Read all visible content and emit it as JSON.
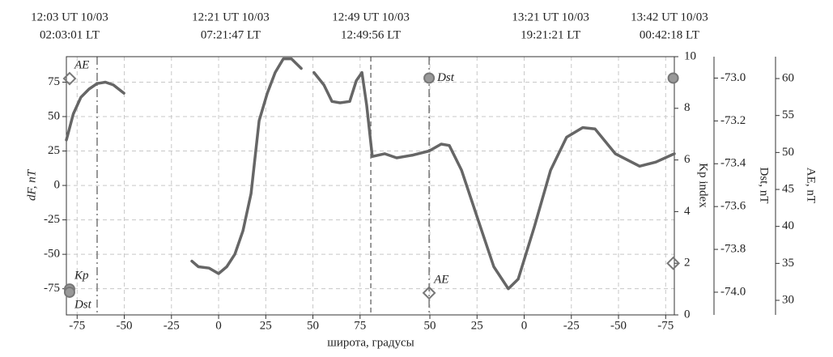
{
  "chart_data": {
    "type": "line",
    "xlabel": "широта, градусы",
    "ylabel": "dF, nT",
    "y2label": "Kp index",
    "y3label": "Dst, nT",
    "y4label": "AE, nT",
    "top_labels": [
      {
        "x": -79,
        "ut": "12:03 UT 10/03",
        "lt": "02:03:01 LT"
      },
      {
        "x": 6.4,
        "ut": "12:21 UT 10/03",
        "lt": "07:21:47 LT"
      },
      {
        "x": 80.7,
        "ut": "12:49 UT 10/03",
        "lt": "12:49:56 LT"
      },
      {
        "x": 176,
        "ut": "13:21 UT 10/03",
        "lt": "19:21:21 LT"
      },
      {
        "x": 239,
        "ut": "13:42 UT 10/03",
        "lt": "00:42:18 LT"
      }
    ],
    "xlim": [
      -80.7,
      241.6
    ],
    "xticks": [
      -75,
      -50,
      -25,
      0,
      25,
      50,
      75,
      {
        "value": 112,
        "label": "50"
      },
      {
        "value": 137,
        "label": "25"
      },
      {
        "value": 162,
        "label": "0"
      },
      {
        "value": 187,
        "label": "-25"
      },
      {
        "value": 212,
        "label": "-50"
      },
      {
        "value": 237,
        "label": "-75"
      }
    ],
    "ylim": [
      -94,
      93.5
    ],
    "yticks": [
      -75,
      -50,
      -25,
      0,
      25,
      50,
      75
    ],
    "y2lim": [
      0,
      10
    ],
    "y2ticks": [
      0,
      2,
      4,
      6,
      8,
      10
    ],
    "y3lim": [
      -74.106,
      -72.9
    ],
    "y3ticks": [
      {
        "value": -74.0,
        "label": "-74.0"
      },
      {
        "value": -73.8,
        "label": "-73.8"
      },
      {
        "value": -73.6,
        "label": "-73.6"
      },
      {
        "value": -73.4,
        "label": "-73.4"
      },
      {
        "value": -73.2,
        "label": "-73.2"
      },
      {
        "value": -73.0,
        "label": "-73.0"
      }
    ],
    "y4lim": [
      28.03,
      62.96
    ],
    "y4ticks": [
      30,
      35,
      40,
      45,
      50,
      55,
      60
    ],
    "grid": true,
    "vlines": [
      {
        "x": -64.4,
        "style": "dashdot"
      },
      {
        "x": 80.7,
        "style": "dashed"
      },
      {
        "x": 111.6,
        "style": "dashdot"
      }
    ],
    "series": [
      {
        "name": "dF",
        "color": "#666666",
        "x": [
          -80.7,
          -77,
          -73,
          -68.7,
          -64.4,
          -60,
          -55.8,
          -50.2,
          null,
          -14.2,
          -10.7,
          -5,
          0,
          4.3,
          8.6,
          12.9,
          17.2,
          21.5,
          25.8,
          30,
          34.3,
          38.6,
          43.8,
          null,
          50.6,
          55.8,
          60.1,
          64.4,
          69.5,
          73,
          76,
          78.5,
          81.5,
          88,
          94.4,
          103,
          111.6,
          118,
          122.3,
          128.8,
          137.3,
          145.9,
          153.6,
          158.8,
          167.4,
          176,
          184.5,
          193,
          199.6,
          210.3,
          223.2,
          231.8,
          241.6
        ],
        "values": [
          33,
          52,
          64,
          70,
          74,
          75,
          73,
          67,
          null,
          -55,
          -59,
          -60,
          -64,
          -59,
          -50,
          -33,
          -6,
          47,
          67,
          82,
          92,
          92,
          85,
          null,
          82,
          73,
          61,
          60,
          61,
          76,
          82,
          58,
          21,
          23,
          20,
          22,
          25,
          30,
          29,
          11,
          -24,
          -59,
          -75,
          -68,
          -30,
          11,
          35,
          42,
          41,
          23,
          14,
          17,
          23
        ]
      }
    ],
    "markers": [
      {
        "name": "AE",
        "axis": "y4",
        "x": -79,
        "value": 60,
        "shape": "diamond",
        "label_pos": "above"
      },
      {
        "name": "Kp",
        "axis": "y2",
        "x": -79,
        "value": 1,
        "shape": "circle",
        "label_pos": "above"
      },
      {
        "name": "Dst",
        "axis": "y3",
        "x": -79,
        "value": -74.0,
        "shape": "circle",
        "label_pos": "below"
      },
      {
        "name": "Dst",
        "axis": "y3",
        "x": 111.6,
        "value": -73.0,
        "shape": "circle",
        "label_pos": "right"
      },
      {
        "name": "AE",
        "axis": "y4",
        "x": 111.6,
        "value": 31,
        "shape": "diamond",
        "label_pos": "above"
      },
      {
        "name": "Dst",
        "axis": "y3",
        "x": 241,
        "value": -73.0,
        "shape": "circle",
        "label_pos": "none"
      },
      {
        "name": "Kp",
        "axis": "y2",
        "x": 241,
        "value": 2,
        "shape": "diamond",
        "label_pos": "none"
      }
    ]
  }
}
